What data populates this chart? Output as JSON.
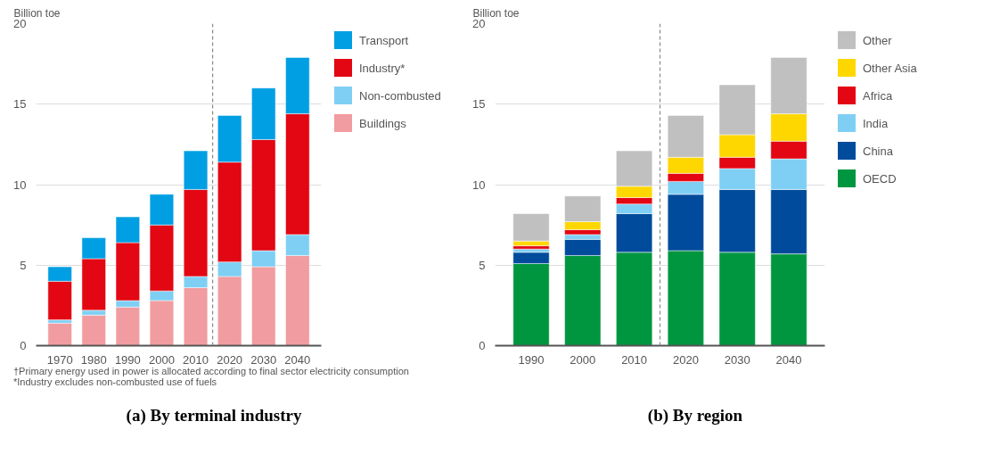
{
  "chart_data": [
    {
      "type": "bar",
      "stacked": true,
      "title": "(a) By terminal industry",
      "ylabel": "Billion toe",
      "x": [
        1970,
        1980,
        1990,
        2000,
        2010,
        2020,
        2030,
        2040
      ],
      "xlim": [
        1963,
        2047
      ],
      "xticks": [
        1970,
        1980,
        1990,
        2000,
        2010,
        2020,
        2030,
        2040
      ],
      "ylim": [
        0,
        20
      ],
      "yticks": [
        0,
        5,
        10,
        15,
        20
      ],
      "grid": "y",
      "legend": "top right",
      "series": [
        {
          "name": "Buildings",
          "color": "#f19ca0",
          "values": [
            1.4,
            1.9,
            2.4,
            2.8,
            3.6,
            4.3,
            4.9,
            5.6
          ]
        },
        {
          "name": "Non-combusted",
          "color": "#7fcff5",
          "values": [
            0.2,
            0.3,
            0.4,
            0.6,
            0.7,
            0.9,
            1.0,
            1.3
          ]
        },
        {
          "name": "Industry*",
          "color": "#e30613",
          "values": [
            2.4,
            3.2,
            3.6,
            4.1,
            5.4,
            6.2,
            6.9,
            7.5
          ]
        },
        {
          "name": "Transport",
          "color": "#009fe3",
          "values": [
            0.9,
            1.3,
            1.6,
            1.9,
            2.4,
            2.9,
            3.2,
            3.5
          ]
        }
      ],
      "ref_lines": [
        {
          "axis": "x",
          "value": 2015,
          "color": "#888888",
          "line_style": "dashed"
        }
      ],
      "annotations": [
        "†Primary energy used in power is allocated according to final sector electricity consumption",
        "*Industry excludes non-combusted use of fuels"
      ]
    },
    {
      "type": "bar",
      "stacked": true,
      "title": "(b) By region",
      "ylabel": "Billion toe",
      "x": [
        1990,
        2000,
        2010,
        2020,
        2030,
        2040
      ],
      "xlim": [
        1983,
        2047
      ],
      "xticks": [
        1990,
        2000,
        2010,
        2020,
        2030,
        2040
      ],
      "ylim": [
        0,
        20
      ],
      "yticks": [
        0,
        5,
        10,
        15,
        20
      ],
      "grid": "y",
      "legend": "top right",
      "series": [
        {
          "name": "OECD",
          "color": "#009640",
          "values": [
            5.1,
            5.6,
            5.8,
            5.9,
            5.8,
            5.7
          ]
        },
        {
          "name": "China",
          "color": "#004b9b",
          "values": [
            0.7,
            1.0,
            2.4,
            3.5,
            3.9,
            4.0
          ]
        },
        {
          "name": "India",
          "color": "#7fcff5",
          "values": [
            0.2,
            0.3,
            0.6,
            0.8,
            1.3,
            1.9
          ]
        },
        {
          "name": "Africa",
          "color": "#e30613",
          "values": [
            0.2,
            0.3,
            0.4,
            0.5,
            0.7,
            1.1
          ]
        },
        {
          "name": "Other Asia",
          "color": "#ffd700",
          "values": [
            0.3,
            0.5,
            0.7,
            1.0,
            1.4,
            1.7
          ]
        },
        {
          "name": "Other",
          "color": "#c0c0c0",
          "values": [
            1.7,
            1.6,
            2.2,
            2.6,
            3.1,
            3.5
          ]
        }
      ],
      "ref_lines": [
        {
          "axis": "x",
          "value": 2015,
          "color": "#888888",
          "line_style": "dashed"
        }
      ]
    }
  ]
}
